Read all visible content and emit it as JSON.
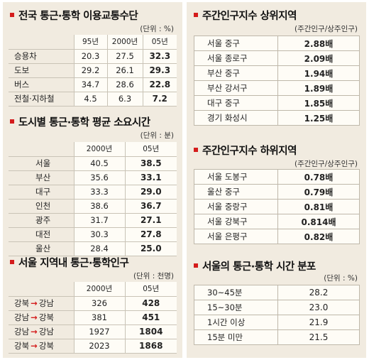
{
  "section1": {
    "title": "전국 통근·통학 이용교통수단",
    "unit": "(단위 : %)",
    "columns": [
      "",
      "95년",
      "2000년",
      "05년"
    ],
    "rows": [
      {
        "label": "승용차",
        "v95": "20.3",
        "v00": "27.5",
        "v05": "32.3"
      },
      {
        "label": "도보",
        "v95": "29.2",
        "v00": "26.1",
        "v05": "29.3"
      },
      {
        "label": "버스",
        "v95": "34.7",
        "v00": "28.6",
        "v05": "22.8"
      },
      {
        "label": "전철·지하철",
        "v95": "4.5",
        "v00": "6.3",
        "v05": "7.2"
      }
    ]
  },
  "section2": {
    "title": "도시별 통근·통학 평균 소요시간",
    "unit": "(단위 : 분)",
    "columns": [
      "",
      "2000년",
      "05년"
    ],
    "rows": [
      {
        "label": "서울",
        "v00": "40.5",
        "v05": "38.5"
      },
      {
        "label": "부산",
        "v00": "35.6",
        "v05": "33.1"
      },
      {
        "label": "대구",
        "v00": "33.3",
        "v05": "29.0"
      },
      {
        "label": "인천",
        "v00": "38.6",
        "v05": "36.7"
      },
      {
        "label": "광주",
        "v00": "31.7",
        "v05": "27.1"
      },
      {
        "label": "대전",
        "v00": "30.3",
        "v05": "27.8"
      },
      {
        "label": "울산",
        "v00": "28.4",
        "v05": "25.0"
      }
    ]
  },
  "section3": {
    "title": "서울 지역내 통근·통학인구",
    "unit": "(단위 : 천명)",
    "columns": [
      "",
      "2000년",
      "05년"
    ],
    "arrow": "→",
    "rows": [
      {
        "from": "강북",
        "to": "강남",
        "v00": "326",
        "v05": "428"
      },
      {
        "from": "강남",
        "to": "강북",
        "v00": "381",
        "v05": "451"
      },
      {
        "from": "강남",
        "to": "강남",
        "v00": "1927",
        "v05": "1804"
      },
      {
        "from": "강북",
        "to": "강북",
        "v00": "2023",
        "v05": "1868"
      }
    ]
  },
  "section4": {
    "title": "주간인구지수 상위지역",
    "unit": "(주간인구/상주인구)",
    "rows": [
      {
        "label": "서울 중구",
        "value": "2.88배"
      },
      {
        "label": "서울 종로구",
        "value": "2.09배"
      },
      {
        "label": "부산 중구",
        "value": "1.94배"
      },
      {
        "label": "부산 강서구",
        "value": "1.89배"
      },
      {
        "label": "대구 중구",
        "value": "1.85배"
      },
      {
        "label": "경기 화성시",
        "value": "1.25배"
      }
    ]
  },
  "section5": {
    "title": "주간인구지수 하위지역",
    "unit": "(주간인구/상주인구)",
    "rows": [
      {
        "label": "서울 도봉구",
        "value": "0.78배"
      },
      {
        "label": "울산 중구",
        "value": "0.79배"
      },
      {
        "label": "서울 중랑구",
        "value": "0.81배"
      },
      {
        "label": "서울 강북구",
        "value": "0.814배"
      },
      {
        "label": "서울 은평구",
        "value": "0.82배"
      }
    ]
  },
  "section6": {
    "title": "서울의 통근·통학 시간 분포",
    "unit": "(단위 : %)",
    "rows": [
      {
        "label": "30~45분",
        "value": "28.2"
      },
      {
        "label": "15~30분",
        "value": "23.0"
      },
      {
        "label": "1시간 이상",
        "value": "21.9"
      },
      {
        "label": "15분 미만",
        "value": "21.5"
      }
    ]
  },
  "colors": {
    "background": "#f1ebe0",
    "cell": "#fefcf6",
    "bullet": "#d41c1c",
    "rule": "#c9c3b6"
  }
}
